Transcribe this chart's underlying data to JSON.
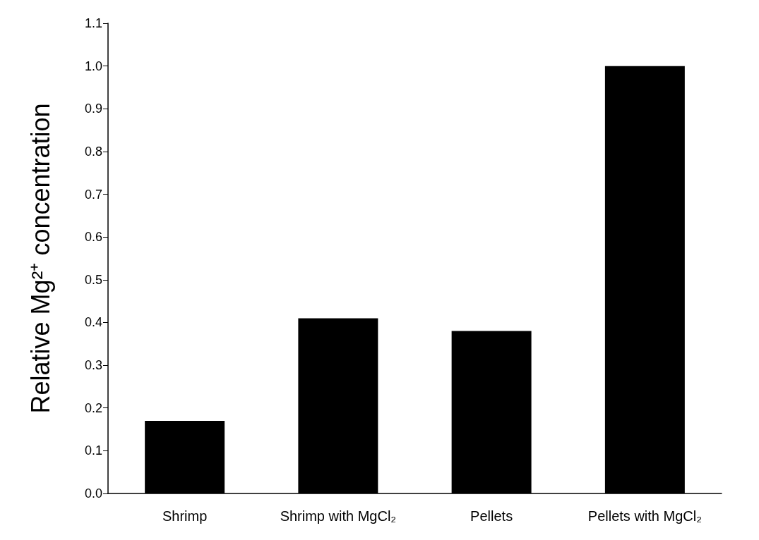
{
  "chart_data": {
    "type": "bar",
    "ylabel": "Relative Mg²⁺ concentration",
    "categories": [
      "Shrimp",
      "Shrimp with MgCl₂",
      "Pellets",
      "Pellets with MgCl₂"
    ],
    "values": [
      0.17,
      0.41,
      0.38,
      1.0
    ],
    "color": "#000000",
    "ylim": [
      0,
      1.1
    ],
    "yticks": [
      {
        "value": 0,
        "label": "0.0"
      },
      0.1,
      0.2,
      0.3,
      0.4,
      0.5,
      0.6,
      0.7,
      0.8,
      0.9,
      {
        "value": 1,
        "label": "1.0"
      },
      1.1
    ],
    "grid": false
  }
}
